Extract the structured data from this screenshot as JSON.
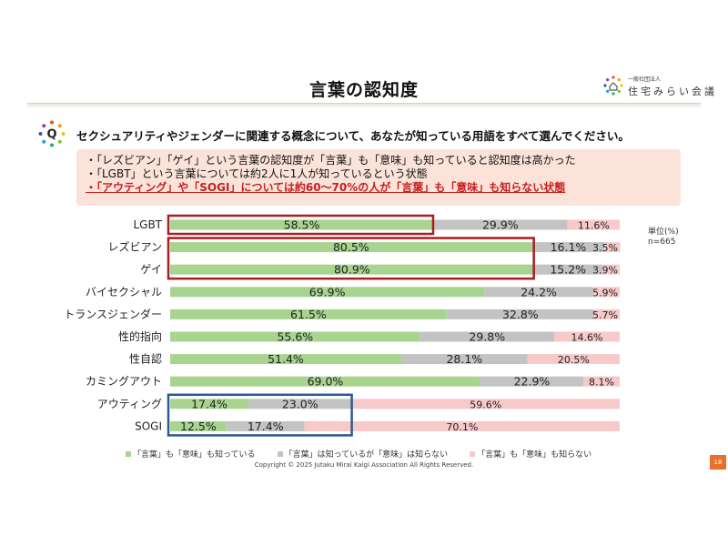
{
  "header": {
    "title": "言葉の認知度",
    "logo_sub": "一般社団法人",
    "logo_name": "住宅みらい会議"
  },
  "question": {
    "badge": "Q",
    "text": "セクシュアリティやジェンダーに関連する概念について、あなたが知っている用語をすべて選んでください。"
  },
  "summary": {
    "lines": [
      "・「レズビアン」「ゲイ」という言葉の認知度が「言葉」も「意味」も知っていると認知度は高かった",
      "・「LGBT」という言葉については約2人に1人が知っているという状態"
    ],
    "highlight": "・「アウティング」や「SOGI」については約60～70%の人が「言葉」も「意味」も知らない状態"
  },
  "unit": {
    "label": "単位(%)",
    "n": "n=665"
  },
  "chart_data": {
    "type": "bar",
    "orientation": "horizontal",
    "stacked": true,
    "categories": [
      "LGBT",
      "レズビアン",
      "ゲイ",
      "バイセクシャル",
      "トランスジェンダー",
      "性的指向",
      "性自認",
      "カミングアウト",
      "アウティング",
      "SOGI"
    ],
    "series": [
      {
        "name": "「言葉」も「意味」も知っている",
        "color": "#a8d48f",
        "values": [
          58.5,
          80.5,
          80.9,
          69.9,
          61.5,
          55.6,
          51.4,
          69.0,
          17.4,
          12.5
        ]
      },
      {
        "name": "「言葉」は知っているが「意味」は知らない",
        "color": "#c3c3c3",
        "values": [
          29.9,
          16.1,
          15.2,
          24.2,
          32.8,
          29.8,
          28.1,
          22.9,
          23.0,
          17.4
        ]
      },
      {
        "name": "「言葉」も「意味」も知らない",
        "color": "#f7c9c9",
        "values": [
          11.6,
          3.5,
          3.9,
          5.9,
          5.7,
          14.6,
          20.5,
          8.1,
          59.6,
          70.1
        ]
      }
    ],
    "value_labels": [
      [
        "58.5%",
        "29.9%",
        "11.6%"
      ],
      [
        "80.5%",
        "16.1%",
        "3.5%"
      ],
      [
        "80.9%",
        "15.2%",
        "3.9%"
      ],
      [
        "69.9%",
        "24.2%",
        "5.9%"
      ],
      [
        "61.5%",
        "32.8%",
        "5.7%"
      ],
      [
        "55.6%",
        "29.8%",
        "14.6%"
      ],
      [
        "51.4%",
        "28.1%",
        "20.5%"
      ],
      [
        "69.0%",
        "22.9%",
        "8.1%"
      ],
      [
        "17.4%",
        "23.0%",
        "59.6%"
      ],
      [
        "12.5%",
        "17.4%",
        "70.1%"
      ]
    ],
    "highlight_boxes": [
      {
        "categories": [
          "LGBT"
        ],
        "color": "#a81e22"
      },
      {
        "categories": [
          "レズビアン",
          "ゲイ"
        ],
        "color": "#a81e22"
      },
      {
        "categories": [
          "アウティング",
          "SOGI"
        ],
        "color": "#2c5a8f"
      }
    ],
    "xlim": [
      0,
      100
    ],
    "legend_position": "bottom"
  },
  "footer": {
    "copyright": "Copyright © 2025 Jutaku Mirai Kaigi Association All Rights Reserved.",
    "page": "18"
  }
}
